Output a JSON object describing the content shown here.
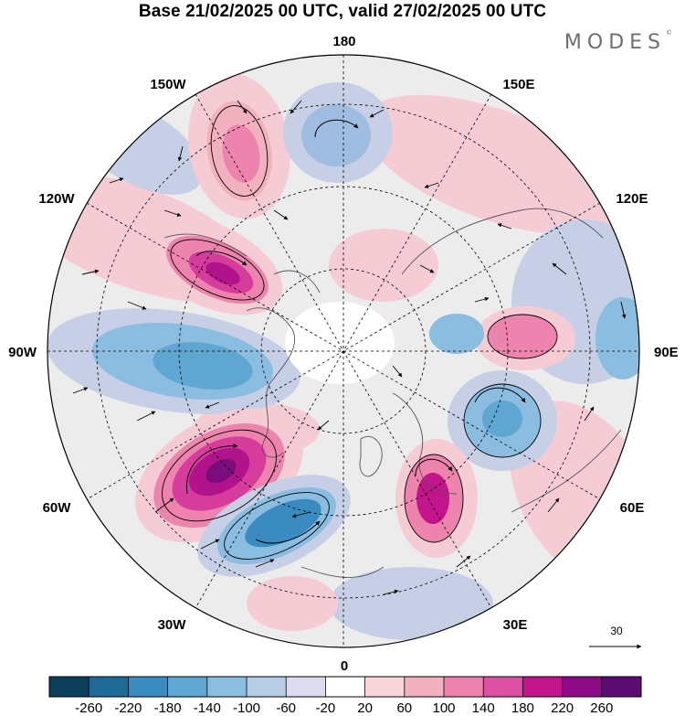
{
  "title": "Base 21/02/2025 00 UTC, valid 27/02/2025 00 UTC",
  "brand": {
    "name": "MODES",
    "mark": "©"
  },
  "longitude_labels": {
    "top": "180",
    "bottom": "0",
    "left": "90W",
    "right": "90E",
    "upper_left_1": "150W",
    "upper_left_2": "120W",
    "upper_right_1": "150E",
    "upper_right_2": "120E",
    "lower_left_1": "60W",
    "lower_left_2": "30W",
    "lower_right_1": "60E",
    "lower_right_2": "30E"
  },
  "reference_vector": {
    "label": "30"
  },
  "colorbar": {
    "labels": [
      "-260",
      "-220",
      "-180",
      "-140",
      "-100",
      "-60",
      "-20",
      "20",
      "60",
      "100",
      "140",
      "180",
      "220",
      "260"
    ],
    "colors": [
      "#0d3f5c",
      "#1f6a96",
      "#3a8bc0",
      "#5fa6d2",
      "#8bbde0",
      "#b7cde6",
      "#dcdcee",
      "#ffffff",
      "#f8d5d8",
      "#f2b1bf",
      "#ec84ae",
      "#dd4fa3",
      "#c2148b",
      "#8e0a86",
      "#5b0b71"
    ]
  },
  "colors": {
    "neg_strong": "#2f7fb7",
    "neg_mid": "#7fb0d8",
    "neg_light": "#c7cfe6",
    "pos_light": "#f6ccd4",
    "pos_mid": "#ee9fb9",
    "pos_strong": "#d63c9c",
    "pos_max": "#8f0e86",
    "land_outline": "#555555",
    "grid": "#000000"
  }
}
